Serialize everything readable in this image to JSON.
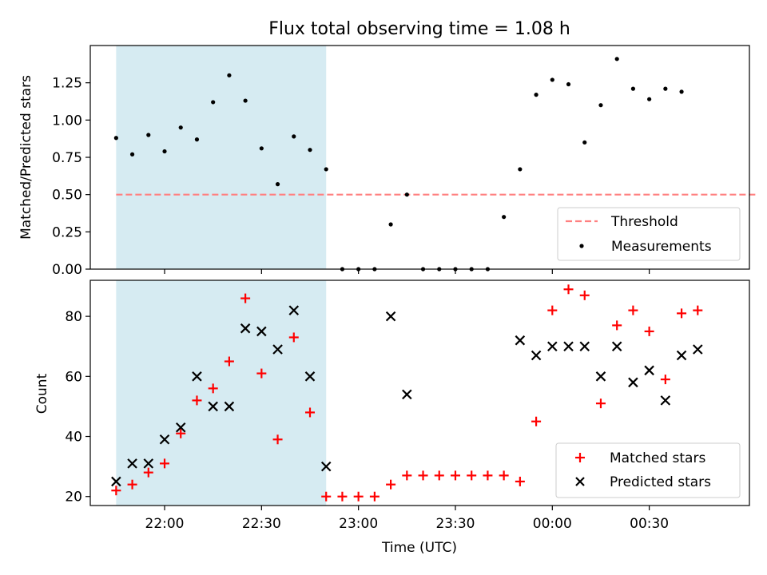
{
  "title": "Flux total observing time = 1.08 h",
  "chart_data": [
    {
      "type": "scatter",
      "ylabel": "Matched/Predicted stars",
      "xlabel": "",
      "ylim": [
        0,
        1.5
      ],
      "yticks": [
        0.0,
        0.25,
        0.5,
        0.75,
        1.0,
        1.25
      ],
      "ytick_labels": [
        "0.00",
        "0.25",
        "0.50",
        "0.75",
        "1.00",
        "1.25"
      ],
      "xlim": [
        "21:37",
        "01:01"
      ],
      "xticks": [
        "22:00",
        "22:30",
        "23:00",
        "23:30",
        "00:00",
        "00:30"
      ],
      "shaded_region": {
        "x": [
          "21:45",
          "22:50"
        ],
        "color": "#add8e6"
      },
      "legend_position": "lower right",
      "series": [
        {
          "name": "Threshold",
          "style": "dashed-line",
          "color": "#ff8080",
          "x": [
            "21:45",
            "01:03"
          ],
          "y": [
            0.5,
            0.5
          ]
        },
        {
          "name": "Measurements",
          "style": "dot",
          "color": "#000000",
          "x": [
            "21:45",
            "21:50",
            "21:55",
            "22:00",
            "22:05",
            "22:10",
            "22:15",
            "22:20",
            "22:25",
            "22:30",
            "22:35",
            "22:40",
            "22:45",
            "22:50",
            "22:55",
            "23:00",
            "23:05",
            "23:10",
            "23:15",
            "23:20",
            "23:25",
            "23:30",
            "23:35",
            "23:40",
            "23:45",
            "23:50",
            "23:55",
            "00:00",
            "00:05",
            "00:10",
            "00:15",
            "00:20",
            "00:25",
            "00:30",
            "00:35",
            "00:40",
            "00:45",
            "00:50",
            "00:55",
            "01:00",
            "01:03"
          ],
          "y": [
            0.88,
            0.77,
            0.9,
            0.79,
            0.95,
            0.87,
            1.12,
            1.3,
            1.13,
            0.81,
            0.57,
            0.89,
            0.8,
            0.67,
            0.0,
            0.0,
            0.0,
            0.3,
            0.5,
            0.0,
            0.0,
            0.0,
            0.0,
            0.0,
            0.35,
            0.67,
            1.17,
            1.27,
            1.24,
            0.85,
            1.1,
            1.41,
            1.21,
            1.14,
            1.21,
            1.19,
            null,
            null,
            null,
            null,
            null
          ]
        }
      ]
    },
    {
      "type": "scatter",
      "ylabel": "Count",
      "xlabel": "Time (UTC)",
      "ylim": [
        17,
        92
      ],
      "yticks": [
        20,
        40,
        60,
        80
      ],
      "ytick_labels": [
        "20",
        "40",
        "60",
        "80"
      ],
      "xlim": [
        "21:37",
        "01:01"
      ],
      "xticks": [
        "22:00",
        "22:30",
        "23:00",
        "23:30",
        "00:00",
        "00:30"
      ],
      "shaded_region": {
        "x": [
          "21:45",
          "22:50"
        ],
        "color": "#add8e6"
      },
      "legend_position": "lower right",
      "series": [
        {
          "name": "Matched stars",
          "style": "plus",
          "color": "#ff0000",
          "x": [
            "21:45",
            "21:50",
            "21:55",
            "22:00",
            "22:05",
            "22:10",
            "22:15",
            "22:20",
            "22:25",
            "22:30",
            "22:35",
            "22:40",
            "22:45",
            "22:50",
            "22:55",
            "23:00",
            "23:05",
            "23:10",
            "23:15",
            "23:20",
            "23:25",
            "23:30",
            "23:35",
            "23:40",
            "23:45",
            "23:50",
            "23:55",
            "00:00",
            "00:05",
            "00:10",
            "00:15",
            "00:20",
            "00:25",
            "00:30",
            "00:35",
            "00:40",
            "00:45",
            "00:50",
            "00:55"
          ],
          "y": [
            22,
            24,
            28,
            31,
            41,
            52,
            56,
            65,
            86,
            61,
            39,
            73,
            48,
            20,
            20,
            20,
            20,
            24,
            27,
            27,
            27,
            27,
            27,
            27,
            27,
            25,
            45,
            82,
            89,
            87,
            51,
            77,
            82,
            75,
            59,
            81,
            82,
            null,
            null
          ]
        },
        {
          "name": "Predicted stars",
          "style": "x",
          "color": "#000000",
          "x": [
            "21:45",
            "21:50",
            "21:55",
            "22:00",
            "22:05",
            "22:10",
            "22:15",
            "22:20",
            "22:25",
            "22:30",
            "22:35",
            "22:40",
            "22:45",
            "22:50",
            "23:10",
            "23:15",
            "23:50",
            "23:55",
            "00:00",
            "00:05",
            "00:10",
            "00:15",
            "00:20",
            "00:25",
            "00:30",
            "00:35",
            "00:40",
            "00:45"
          ],
          "y": [
            25,
            31,
            31,
            39,
            43,
            60,
            50,
            50,
            76,
            75,
            69,
            82,
            60,
            30,
            80,
            54,
            72,
            67,
            70,
            70,
            70,
            60,
            70,
            58,
            62,
            52,
            67,
            69
          ]
        }
      ]
    }
  ]
}
